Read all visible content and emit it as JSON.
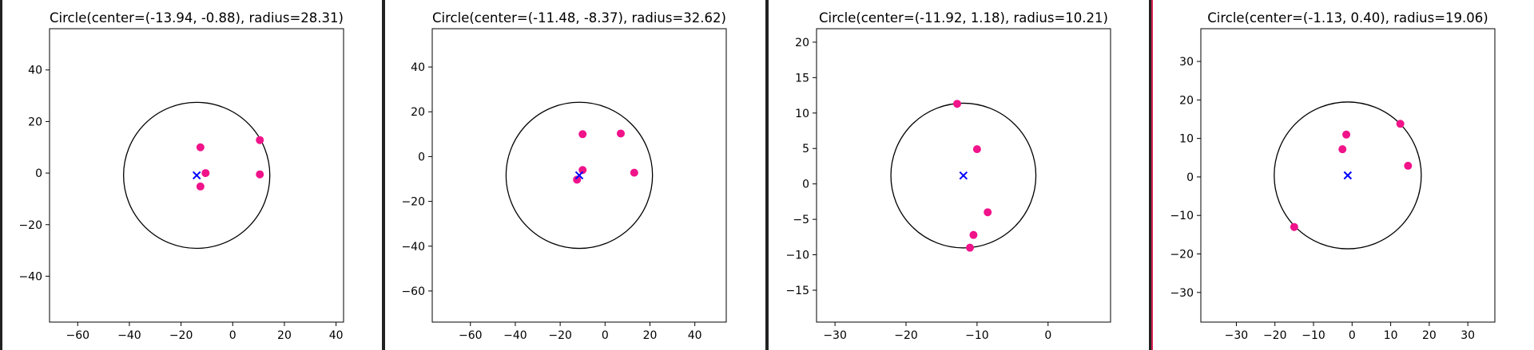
{
  "chart_data": [
    {
      "type": "scatter",
      "title": "Circle(center=(-13.94, -0.88), radius=28.31)",
      "xlim": [
        -70.9,
        42.9
      ],
      "ylim": [
        -57.8,
        56.0
      ],
      "xticks": [
        -60,
        -40,
        -20,
        0,
        20,
        40
      ],
      "yticks": [
        -40,
        -20,
        0,
        20,
        40
      ],
      "center": [
        -13.94,
        -0.88
      ],
      "radius": 28.31,
      "points": [
        [
          -12.5,
          10.0
        ],
        [
          -10.5,
          0.0
        ],
        [
          -12.5,
          -5.2
        ],
        [
          10.5,
          12.8
        ],
        [
          10.5,
          -0.5
        ]
      ]
    },
    {
      "type": "scatter",
      "title": "Circle(center=(-11.48, -8.37), radius=32.62)",
      "xlim": [
        -77.0,
        54.0
      ],
      "ylim": [
        -73.9,
        57.1
      ],
      "xticks": [
        -60,
        -40,
        -20,
        0,
        20,
        40
      ],
      "yticks": [
        -60,
        -40,
        -20,
        0,
        20,
        40
      ],
      "center": [
        -11.48,
        -8.37
      ],
      "radius": 32.62,
      "points": [
        [
          -10.0,
          10.0
        ],
        [
          7.0,
          10.3
        ],
        [
          13.0,
          -7.2
        ],
        [
          -10.0,
          -6.0
        ],
        [
          -12.5,
          -10.3
        ]
      ]
    },
    {
      "type": "scatter",
      "title": "Circle(center=(-11.92, 1.18), radius=10.21)",
      "xlim": [
        -32.6,
        8.8
      ],
      "ylim": [
        -19.5,
        21.9
      ],
      "xticks": [
        -30,
        -20,
        -10,
        0
      ],
      "yticks": [
        -15,
        -10,
        -5,
        0,
        5,
        10,
        15,
        20
      ],
      "center": [
        -11.92,
        1.18
      ],
      "radius": 10.21,
      "points": [
        [
          -12.8,
          11.3
        ],
        [
          -10.0,
          4.9
        ],
        [
          -8.5,
          -4.0
        ],
        [
          -10.5,
          -7.2
        ],
        [
          -11.0,
          -9.0
        ]
      ]
    },
    {
      "type": "scatter",
      "title": "Circle(center=(-1.13, 0.40), radius=19.06)",
      "xlim": [
        -39.2,
        37.0
      ],
      "ylim": [
        -37.7,
        38.5
      ],
      "xticks": [
        -30,
        -20,
        -10,
        0,
        10,
        20,
        30
      ],
      "yticks": [
        -30,
        -20,
        -10,
        0,
        10,
        20,
        30
      ],
      "center": [
        -1.13,
        0.4
      ],
      "radius": 19.06,
      "points": [
        [
          -1.5,
          11.0
        ],
        [
          -2.5,
          7.2
        ],
        [
          12.5,
          13.8
        ],
        [
          14.5,
          2.9
        ],
        [
          -15.0,
          -13.0
        ]
      ]
    }
  ],
  "colors": {
    "points": "#f0138a",
    "center_marker": "#0000ff",
    "circle": "#000000",
    "divider": "#222222",
    "divider_accent": "#d62050"
  }
}
